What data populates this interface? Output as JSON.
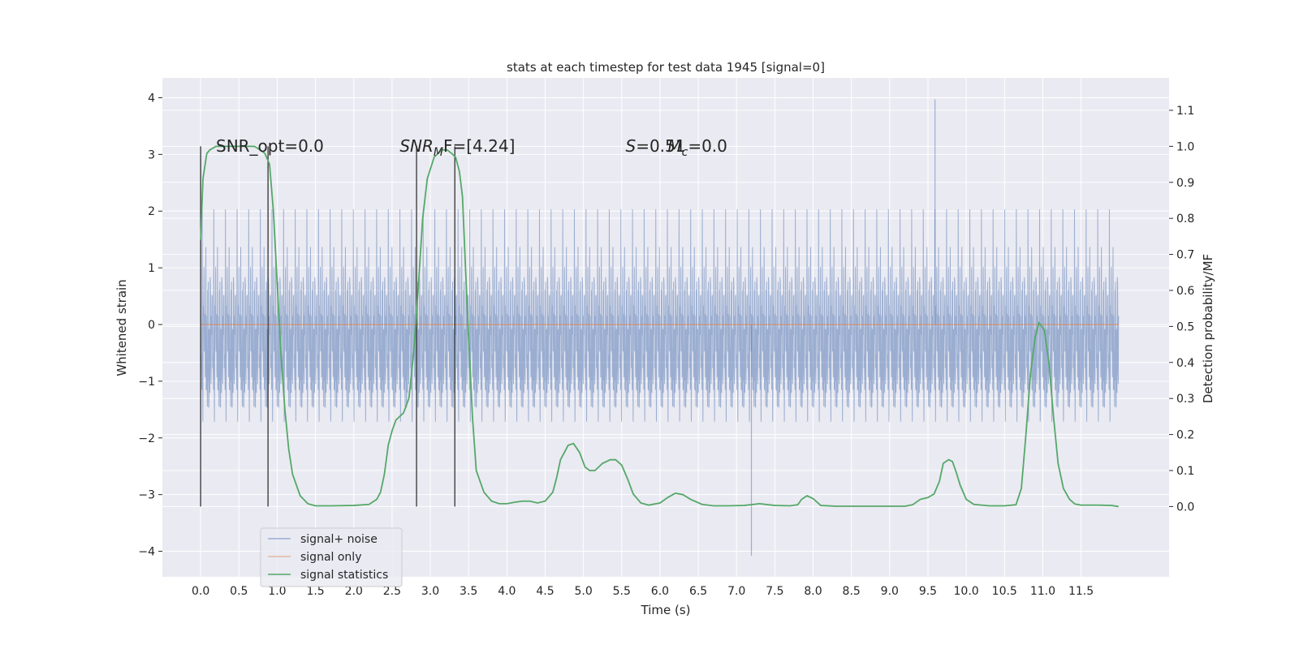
{
  "chart_data": {
    "type": "line",
    "title": "stats at each timestep for test data 1945 [signal=0]",
    "xlabel": "Time (s)",
    "ylabel_left": "Whitened strain",
    "ylabel_right": "Detection probability/MF",
    "xlim": [
      -0.5,
      12.65
    ],
    "ylim_left": [
      -4.45,
      4.35
    ],
    "ylim_right": [
      -0.195,
      1.19
    ],
    "x_ticks": [
      0.0,
      0.5,
      1.0,
      1.5,
      2.0,
      2.5,
      3.0,
      3.5,
      4.0,
      4.5,
      5.0,
      5.5,
      6.0,
      6.5,
      7.0,
      7.5,
      8.0,
      8.5,
      9.0,
      9.5,
      10.0,
      10.5,
      11.0,
      11.5
    ],
    "x_tick_labels": [
      "0.0",
      "0.5",
      "1.0",
      "1.5",
      "2.0",
      "2.5",
      "3.0",
      "3.5",
      "4.0",
      "4.5",
      "5.0",
      "5.5",
      "6.0",
      "6.5",
      "7.0",
      "7.5",
      "8.0",
      "8.5",
      "9.0",
      "9.5",
      "10.0",
      "10.5",
      "11.0",
      "11.5"
    ],
    "y_left_ticks": [
      -4,
      -3,
      -2,
      -1,
      0,
      1,
      2,
      3,
      4
    ],
    "y_left_tick_labels": [
      "−4",
      "−3",
      "−2",
      "−1",
      "0",
      "1",
      "2",
      "3",
      "4"
    ],
    "y_right_ticks": [
      0.0,
      0.1,
      0.2,
      0.3,
      0.4,
      0.5,
      0.6,
      0.7,
      0.8,
      0.9,
      1.0,
      1.1
    ],
    "y_right_tick_labels": [
      "0.0",
      "0.1",
      "0.2",
      "0.3",
      "0.4",
      "0.5",
      "0.6",
      "0.7",
      "0.8",
      "0.9",
      "1.0",
      "1.1"
    ],
    "grid": true,
    "legend_position": "bottom-left",
    "series": [
      {
        "name": "signal+ noise",
        "color": "#4c72b0",
        "kind": "noise",
        "x_range": [
          0.0,
          11.99
        ],
        "std": 1.0,
        "extrema": {
          "max": 3.97,
          "min": -4.08
        }
      },
      {
        "name": "signal only",
        "color": "#dd8452",
        "kind": "constant",
        "x_range": [
          0.0,
          11.99
        ],
        "value": 0.0
      },
      {
        "name": "signal statistics",
        "color": "#55a868",
        "axis": "right",
        "x": [
          0.0,
          0.03,
          0.08,
          0.12,
          0.2,
          0.3,
          0.5,
          0.7,
          0.78,
          0.84,
          0.9,
          0.95,
          1.0,
          1.05,
          1.1,
          1.15,
          1.2,
          1.3,
          1.4,
          1.5,
          1.7,
          2.0,
          2.2,
          2.3,
          2.35,
          2.4,
          2.45,
          2.5,
          2.55,
          2.6,
          2.65,
          2.72,
          2.78,
          2.84,
          2.9,
          2.96,
          3.05,
          3.15,
          3.22,
          3.28,
          3.33,
          3.38,
          3.42,
          3.46,
          3.5,
          3.55,
          3.6,
          3.7,
          3.8,
          3.9,
          4.0,
          4.1,
          4.2,
          4.3,
          4.4,
          4.5,
          4.6,
          4.65,
          4.7,
          4.8,
          4.87,
          4.95,
          5.02,
          5.08,
          5.15,
          5.25,
          5.35,
          5.42,
          5.5,
          5.58,
          5.65,
          5.75,
          5.85,
          6.0,
          6.1,
          6.2,
          6.3,
          6.4,
          6.55,
          6.7,
          6.9,
          7.1,
          7.3,
          7.5,
          7.7,
          7.8,
          7.85,
          7.92,
          8.0,
          8.1,
          8.3,
          8.6,
          9.0,
          9.2,
          9.3,
          9.4,
          9.5,
          9.58,
          9.65,
          9.7,
          9.77,
          9.82,
          9.87,
          9.92,
          10.0,
          10.1,
          10.3,
          10.5,
          10.65,
          10.72,
          10.78,
          10.84,
          10.9,
          10.95,
          11.02,
          11.08,
          11.14,
          11.2,
          11.27,
          11.35,
          11.42,
          11.5,
          11.7,
          11.9,
          11.99
        ],
        "values": [
          0.74,
          0.91,
          0.98,
          0.99,
          1.0,
          1.0,
          1.0,
          1.0,
          0.99,
          0.98,
          0.95,
          0.82,
          0.62,
          0.42,
          0.27,
          0.16,
          0.09,
          0.03,
          0.008,
          0.002,
          0.002,
          0.003,
          0.006,
          0.02,
          0.04,
          0.09,
          0.17,
          0.21,
          0.24,
          0.25,
          0.26,
          0.3,
          0.42,
          0.6,
          0.8,
          0.91,
          0.97,
          0.99,
          0.99,
          0.98,
          0.97,
          0.93,
          0.86,
          0.66,
          0.47,
          0.25,
          0.1,
          0.04,
          0.015,
          0.008,
          0.008,
          0.012,
          0.015,
          0.015,
          0.01,
          0.015,
          0.04,
          0.08,
          0.13,
          0.17,
          0.175,
          0.15,
          0.11,
          0.1,
          0.1,
          0.12,
          0.13,
          0.13,
          0.115,
          0.075,
          0.035,
          0.01,
          0.004,
          0.01,
          0.025,
          0.037,
          0.033,
          0.02,
          0.006,
          0.002,
          0.002,
          0.003,
          0.008,
          0.003,
          0.002,
          0.005,
          0.02,
          0.03,
          0.022,
          0.003,
          0.001,
          0.001,
          0.001,
          0.001,
          0.005,
          0.02,
          0.025,
          0.035,
          0.07,
          0.12,
          0.13,
          0.125,
          0.095,
          0.06,
          0.02,
          0.006,
          0.002,
          0.002,
          0.005,
          0.05,
          0.2,
          0.37,
          0.47,
          0.51,
          0.49,
          0.4,
          0.25,
          0.12,
          0.05,
          0.02,
          0.007,
          0.004,
          0.004,
          0.003,
          0.0
        ]
      }
    ],
    "vertical_lines": {
      "color": "#333333",
      "x": [
        0.0,
        0.88,
        2.82,
        3.32
      ],
      "y_right_range": [
        0.0,
        1.0
      ]
    },
    "annotations": [
      {
        "text": "SNR_opt=0.0",
        "x": 0.2,
        "y_left": 3.05
      },
      {
        "text_main": "SNR",
        "text_sub": "M",
        "text_tail": "F=[4.24]",
        "x": 2.6,
        "y_left": 3.05
      },
      {
        "text_main": "S",
        "text_tail": "=0.51",
        "x": 5.55,
        "y_left": 3.05
      },
      {
        "text_main": "M",
        "text_sub": "c",
        "text_tail": "=0.0",
        "x": 6.1,
        "y_left": 3.05
      }
    ]
  }
}
